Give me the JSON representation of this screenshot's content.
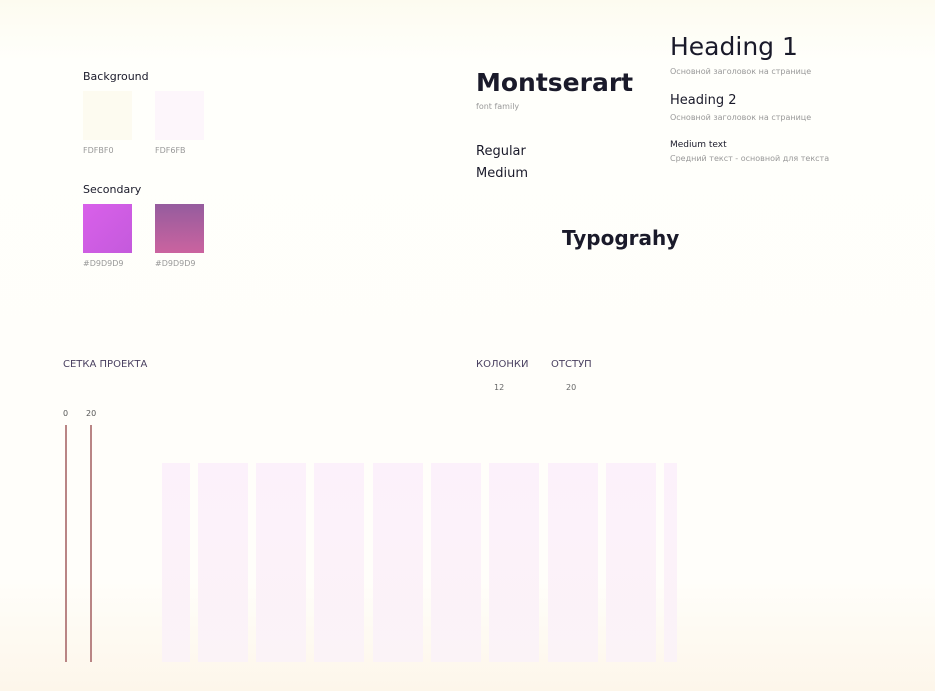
{
  "palette": {
    "background": {
      "title": "Background",
      "swatches": [
        "FDFBF0",
        "FDF6FB"
      ]
    },
    "secondary": {
      "title": "Secondary",
      "swatches": [
        "#D9D9D9",
        "#D9D9D9"
      ]
    }
  },
  "typography": {
    "family": "Montserart",
    "family_note": "font family",
    "weights": [
      "Regular",
      "Medium"
    ],
    "title": "Typograhy",
    "samples": [
      {
        "label": "Heading 1",
        "note": "Основной заголовок на странице"
      },
      {
        "label": "Heading 2",
        "note": "Основной заголовок на странице"
      },
      {
        "label": "Medium text",
        "note": "Средний текст - основной для текста"
      }
    ]
  },
  "grid": {
    "title": "СЕТКА ПРОЕКТА",
    "columns_label": "КОЛОНКИ",
    "columns": "12",
    "gutter_label": "ОТСТУП",
    "gutter": "20",
    "ruler": [
      "0",
      "20"
    ]
  }
}
